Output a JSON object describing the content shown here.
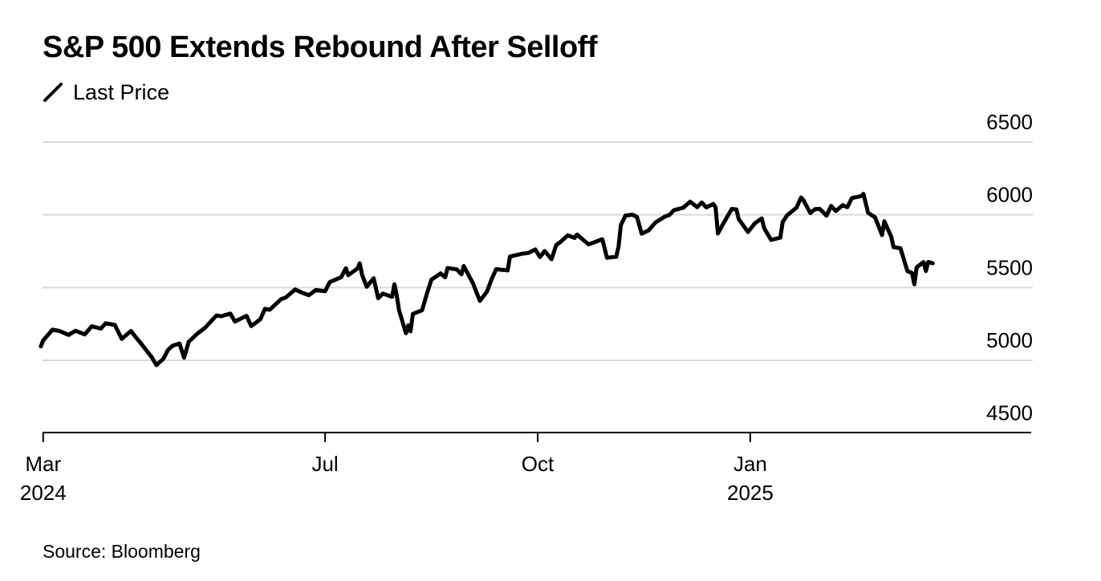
{
  "title": "S&P 500 Extends Rebound After Selloff",
  "legend_label": "Last Price",
  "source": "Source: Bloomberg",
  "chart_data": {
    "type": "line",
    "title": "S&P 500 Extends Rebound After Selloff",
    "xlabel": "",
    "ylabel": "",
    "ylim": [
      4500,
      6500
    ],
    "y_ticks": [
      "6500",
      "6000",
      "5500",
      "5000",
      "4500"
    ],
    "y_tick_values": [
      6500,
      6000,
      5500,
      5000,
      4500
    ],
    "x_ticks": [
      {
        "date": "2024-03-01",
        "label": "Mar",
        "year": "2024"
      },
      {
        "date": "2024-07-01",
        "label": "Jul",
        "year": ""
      },
      {
        "date": "2024-10-01",
        "label": "Oct",
        "year": ""
      },
      {
        "date": "2025-01-01",
        "label": "Jan",
        "year": "2025"
      }
    ],
    "x_range": [
      "2024-02-20",
      "2025-05-05"
    ],
    "grid": true,
    "legend_position": "top-left",
    "line_color": "#000000",
    "grid_color": "#d9d9d9",
    "series": [
      {
        "name": "Last Price",
        "points": [
          [
            "2024-02-29",
            5096
          ],
          [
            "2024-03-01",
            5137
          ],
          [
            "2024-03-05",
            5210
          ],
          [
            "2024-03-08",
            5202
          ],
          [
            "2024-03-12",
            5175
          ],
          [
            "2024-03-15",
            5203
          ],
          [
            "2024-03-19",
            5178
          ],
          [
            "2024-03-22",
            5234
          ],
          [
            "2024-03-26",
            5218
          ],
          [
            "2024-03-28",
            5254
          ],
          [
            "2024-04-01",
            5243
          ],
          [
            "2024-04-04",
            5147
          ],
          [
            "2024-04-08",
            5202
          ],
          [
            "2024-04-10",
            5160
          ],
          [
            "2024-04-12",
            5123
          ],
          [
            "2024-04-15",
            5061
          ],
          [
            "2024-04-17",
            5022
          ],
          [
            "2024-04-19",
            4967
          ],
          [
            "2024-04-22",
            5010
          ],
          [
            "2024-04-24",
            5071
          ],
          [
            "2024-04-26",
            5100
          ],
          [
            "2024-04-29",
            5116
          ],
          [
            "2024-05-01",
            5018
          ],
          [
            "2024-05-03",
            5128
          ],
          [
            "2024-05-07",
            5187
          ],
          [
            "2024-05-10",
            5223
          ],
          [
            "2024-05-15",
            5308
          ],
          [
            "2024-05-17",
            5303
          ],
          [
            "2024-05-21",
            5321
          ],
          [
            "2024-05-23",
            5267
          ],
          [
            "2024-05-28",
            5306
          ],
          [
            "2024-05-30",
            5235
          ],
          [
            "2024-06-03",
            5283
          ],
          [
            "2024-06-05",
            5354
          ],
          [
            "2024-06-07",
            5347
          ],
          [
            "2024-06-12",
            5421
          ],
          [
            "2024-06-14",
            5431
          ],
          [
            "2024-06-18",
            5487
          ],
          [
            "2024-06-21",
            5465
          ],
          [
            "2024-06-24",
            5447
          ],
          [
            "2024-06-27",
            5483
          ],
          [
            "2024-07-01",
            5475
          ],
          [
            "2024-07-03",
            5537
          ],
          [
            "2024-07-08",
            5572
          ],
          [
            "2024-07-10",
            5633
          ],
          [
            "2024-07-11",
            5585
          ],
          [
            "2024-07-15",
            5631
          ],
          [
            "2024-07-16",
            5667
          ],
          [
            "2024-07-17",
            5588
          ],
          [
            "2024-07-19",
            5505
          ],
          [
            "2024-07-22",
            5564
          ],
          [
            "2024-07-24",
            5427
          ],
          [
            "2024-07-26",
            5459
          ],
          [
            "2024-07-30",
            5436
          ],
          [
            "2024-07-31",
            5522
          ],
          [
            "2024-08-01",
            5446
          ],
          [
            "2024-08-02",
            5346
          ],
          [
            "2024-08-05",
            5186
          ],
          [
            "2024-08-06",
            5240
          ],
          [
            "2024-08-07",
            5199
          ],
          [
            "2024-08-08",
            5319
          ],
          [
            "2024-08-12",
            5344
          ],
          [
            "2024-08-14",
            5455
          ],
          [
            "2024-08-16",
            5554
          ],
          [
            "2024-08-20",
            5597
          ],
          [
            "2024-08-22",
            5570
          ],
          [
            "2024-08-23",
            5634
          ],
          [
            "2024-08-27",
            5625
          ],
          [
            "2024-08-29",
            5591
          ],
          [
            "2024-08-30",
            5648
          ],
          [
            "2024-09-03",
            5529
          ],
          [
            "2024-09-06",
            5408
          ],
          [
            "2024-09-09",
            5471
          ],
          [
            "2024-09-11",
            5554
          ],
          [
            "2024-09-13",
            5626
          ],
          [
            "2024-09-18",
            5618
          ],
          [
            "2024-09-19",
            5713
          ],
          [
            "2024-09-24",
            5732
          ],
          [
            "2024-09-27",
            5738
          ],
          [
            "2024-09-30",
            5762
          ],
          [
            "2024-10-02",
            5709
          ],
          [
            "2024-10-04",
            5751
          ],
          [
            "2024-10-07",
            5695
          ],
          [
            "2024-10-09",
            5792
          ],
          [
            "2024-10-11",
            5815
          ],
          [
            "2024-10-14",
            5859
          ],
          [
            "2024-10-17",
            5841
          ],
          [
            "2024-10-18",
            5864
          ],
          [
            "2024-10-23",
            5797
          ],
          [
            "2024-10-25",
            5808
          ],
          [
            "2024-10-29",
            5832
          ],
          [
            "2024-10-31",
            5705
          ],
          [
            "2024-11-04",
            5712
          ],
          [
            "2024-11-05",
            5782
          ],
          [
            "2024-11-06",
            5929
          ],
          [
            "2024-11-08",
            5995
          ],
          [
            "2024-11-11",
            6001
          ],
          [
            "2024-11-13",
            5985
          ],
          [
            "2024-11-15",
            5870
          ],
          [
            "2024-11-18",
            5893
          ],
          [
            "2024-11-21",
            5948
          ],
          [
            "2024-11-25",
            5987
          ],
          [
            "2024-11-27",
            5999
          ],
          [
            "2024-11-29",
            6032
          ],
          [
            "2024-12-03",
            6049
          ],
          [
            "2024-12-06",
            6090
          ],
          [
            "2024-12-09",
            6053
          ],
          [
            "2024-12-11",
            6084
          ],
          [
            "2024-12-13",
            6051
          ],
          [
            "2024-12-16",
            6074
          ],
          [
            "2024-12-17",
            6051
          ],
          [
            "2024-12-18",
            5872
          ],
          [
            "2024-12-20",
            5931
          ],
          [
            "2024-12-24",
            6040
          ],
          [
            "2024-12-26",
            6037
          ],
          [
            "2024-12-27",
            5971
          ],
          [
            "2024-12-31",
            5882
          ],
          [
            "2025-01-03",
            5942
          ],
          [
            "2025-01-06",
            5975
          ],
          [
            "2025-01-07",
            5909
          ],
          [
            "2025-01-10",
            5827
          ],
          [
            "2025-01-14",
            5843
          ],
          [
            "2025-01-15",
            5950
          ],
          [
            "2025-01-17",
            5997
          ],
          [
            "2025-01-21",
            6049
          ],
          [
            "2025-01-23",
            6119
          ],
          [
            "2025-01-24",
            6101
          ],
          [
            "2025-01-27",
            6012
          ],
          [
            "2025-01-29",
            6039
          ],
          [
            "2025-01-31",
            6041
          ],
          [
            "2025-02-03",
            5994
          ],
          [
            "2025-02-05",
            6061
          ],
          [
            "2025-02-07",
            6026
          ],
          [
            "2025-02-10",
            6066
          ],
          [
            "2025-02-12",
            6052
          ],
          [
            "2025-02-14",
            6115
          ],
          [
            "2025-02-18",
            6129
          ],
          [
            "2025-02-19",
            6144
          ],
          [
            "2025-02-21",
            6013
          ],
          [
            "2025-02-24",
            5983
          ],
          [
            "2025-02-27",
            5861
          ],
          [
            "2025-02-28",
            5955
          ],
          [
            "2025-03-03",
            5850
          ],
          [
            "2025-03-04",
            5778
          ],
          [
            "2025-03-07",
            5770
          ],
          [
            "2025-03-10",
            5614
          ],
          [
            "2025-03-12",
            5600
          ],
          [
            "2025-03-13",
            5522
          ],
          [
            "2025-03-14",
            5639
          ],
          [
            "2025-03-17",
            5675
          ],
          [
            "2025-03-18",
            5614
          ],
          [
            "2025-03-19",
            5676
          ],
          [
            "2025-03-21",
            5667
          ]
        ]
      }
    ]
  }
}
